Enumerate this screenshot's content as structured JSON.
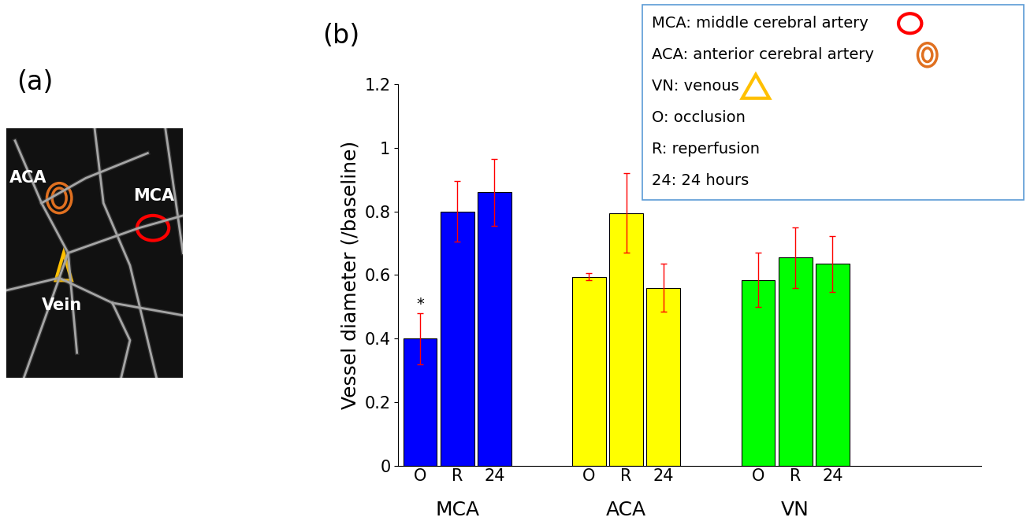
{
  "chart_data": {
    "type": "bar",
    "panel_label": "(b)",
    "y_label": "Vessel diameter (/baseline)",
    "categories": [
      "O",
      "R",
      "24"
    ],
    "series": [
      {
        "name": "MCA",
        "color": "#0000ff",
        "values": [
          0.4,
          0.8,
          0.86
        ],
        "errors": [
          0.08,
          0.095,
          0.105
        ]
      },
      {
        "name": "ACA",
        "color": "#ffff00",
        "values": [
          0.595,
          0.795,
          0.56
        ],
        "errors": [
          0.012,
          0.125,
          0.075
        ]
      },
      {
        "name": "VN",
        "color": "#00ff00",
        "values": [
          0.585,
          0.655,
          0.635
        ],
        "errors": [
          0.085,
          0.095,
          0.087
        ]
      }
    ],
    "annotations": [
      {
        "text": "*",
        "series": "MCA",
        "category": "O"
      }
    ],
    "ylim": [
      0,
      1.2
    ],
    "yticks": [
      0,
      0.2,
      0.4,
      0.6,
      0.8,
      1,
      1.2
    ],
    "grid": false
  },
  "key": [
    "MCA: middle cerebral artery",
    "ACA: anterior cerebral artery",
    "VN: venous",
    "O: occlusion",
    "R: reperfusion",
    "24: 24 hours"
  ],
  "panel_a": {
    "panel_label": "(a)",
    "labels": [
      "ACA",
      "MCA",
      "Vein"
    ]
  }
}
